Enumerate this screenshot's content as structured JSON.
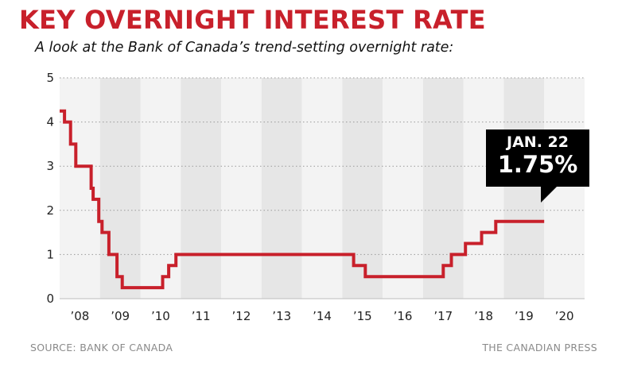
{
  "title": "KEY OVERNIGHT INTEREST RATE",
  "subtitle": "A look at the Bank of Canada’s trend-setting overnight rate:",
  "source": "SOURCE: BANK OF CANADA",
  "credit": "THE CANADIAN PRESS",
  "callout": {
    "date": "JAN. 22",
    "value": "1.75%"
  },
  "colors": {
    "title": "#c8202b",
    "line": "#c8202b",
    "band_light": "#f3f3f3",
    "band_dark": "#e6e6e6",
    "callout_bg": "#000000"
  },
  "chart_data": {
    "type": "line",
    "title": "KEY OVERNIGHT INTEREST RATE",
    "subtitle": "A look at the Bank of Canada’s trend-setting overnight rate:",
    "xlabel": "",
    "ylabel": "",
    "xlim": [
      2007.5,
      2020.5
    ],
    "ylim": [
      0,
      5
    ],
    "yticks": [
      "0",
      "1",
      "2",
      "3",
      "4",
      "5"
    ],
    "xticks": [
      "’08",
      "’09",
      "’10",
      "’11",
      "’12",
      "’13",
      "’14",
      "’15",
      "’16",
      "’17",
      "’18",
      "’19",
      "’20"
    ],
    "grid": true,
    "step": true,
    "x": [
      2007.5,
      2007.62,
      2007.77,
      2007.9,
      2008.28,
      2008.33,
      2008.47,
      2008.55,
      2008.72,
      2008.92,
      2009.05,
      2009.25,
      2010.05,
      2010.2,
      2010.38,
      2014.78,
      2015.07,
      2015.4,
      2017.0,
      2017.2,
      2017.55,
      2017.95,
      2018.3,
      2018.55,
      2019.5
    ],
    "series": [
      {
        "values": [
          4.25,
          4.0,
          3.5,
          3.0,
          2.5,
          2.25,
          1.75,
          1.5,
          1.0,
          0.5,
          0.25,
          0.25,
          0.5,
          0.75,
          1.0,
          0.75,
          0.5,
          0.5,
          0.75,
          1.0,
          1.25,
          1.5,
          1.75,
          1.75,
          1.75
        ]
      }
    ],
    "annotation": {
      "text": "JAN. 22",
      "value_text": "1.75%",
      "x": 2019.5,
      "y": 1.75
    }
  }
}
